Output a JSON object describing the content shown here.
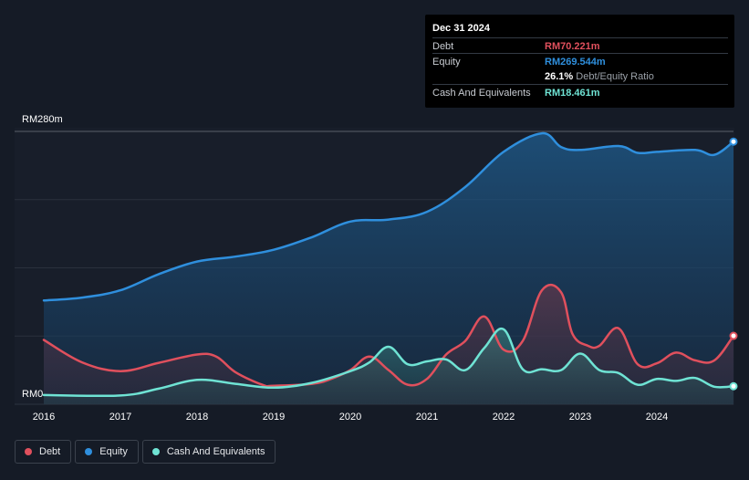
{
  "tooltip": {
    "date": "Dec 31 2024",
    "debt_label": "Debt",
    "debt_value": "RM70.221m",
    "equity_label": "Equity",
    "equity_value": "RM269.544m",
    "ratio_value": "26.1%",
    "ratio_label": "Debt/Equity Ratio",
    "cash_label": "Cash And Equivalents",
    "cash_value": "RM18.461m"
  },
  "legend": [
    {
      "label": "Debt",
      "color": "#e0505d"
    },
    {
      "label": "Equity",
      "color": "#2f8fdd"
    },
    {
      "label": "Cash And Equivalents",
      "color": "#6fe3d4"
    }
  ],
  "colors": {
    "debt": "#e0505d",
    "equity": "#2f8fdd",
    "cash": "#6fe3d4",
    "background": "#151b26",
    "plot_background": "#181e2a"
  },
  "chart_data": {
    "type": "area",
    "title": "",
    "xlabel": "",
    "ylabel": "",
    "ylim": [
      0,
      280
    ],
    "xlim": [
      2016,
      2025
    ],
    "y_ticks": [
      {
        "value": 280,
        "label": "RM280m"
      },
      {
        "value": 0,
        "label": "RM0"
      }
    ],
    "x_ticks": [
      {
        "value": 2016,
        "label": "2016"
      },
      {
        "value": 2017,
        "label": "2017"
      },
      {
        "value": 2018,
        "label": "2018"
      },
      {
        "value": 2019,
        "label": "2019"
      },
      {
        "value": 2020,
        "label": "2020"
      },
      {
        "value": 2021,
        "label": "2021"
      },
      {
        "value": 2022,
        "label": "2022"
      },
      {
        "value": 2023,
        "label": "2023"
      },
      {
        "value": 2024,
        "label": "2024"
      }
    ],
    "series": [
      {
        "name": "Equity",
        "points": [
          [
            2016.0,
            106.5
          ],
          [
            2016.5,
            109.5
          ],
          [
            2017.0,
            117
          ],
          [
            2017.5,
            133.5
          ],
          [
            2018.0,
            146.5
          ],
          [
            2018.5,
            151.5
          ],
          [
            2019.0,
            158.5
          ],
          [
            2019.5,
            171.5
          ],
          [
            2020.0,
            187.5
          ],
          [
            2020.5,
            189.5
          ],
          [
            2021.0,
            197.5
          ],
          [
            2021.5,
            223
          ],
          [
            2022.0,
            259
          ],
          [
            2022.5,
            278
          ],
          [
            2022.75,
            264
          ],
          [
            2023.0,
            261
          ],
          [
            2023.5,
            265
          ],
          [
            2023.75,
            258
          ],
          [
            2024.0,
            259
          ],
          [
            2024.5,
            261
          ],
          [
            2024.75,
            256
          ],
          [
            2025.0,
            269.5
          ]
        ]
      },
      {
        "name": "Debt",
        "points": [
          [
            2016.0,
            66
          ],
          [
            2016.5,
            43
          ],
          [
            2017.0,
            34
          ],
          [
            2017.5,
            42.5
          ],
          [
            2018.0,
            51
          ],
          [
            2018.25,
            49
          ],
          [
            2018.5,
            33
          ],
          [
            2018.85,
            20
          ],
          [
            2019.0,
            19
          ],
          [
            2019.5,
            21
          ],
          [
            2019.75,
            26
          ],
          [
            2020.0,
            35
          ],
          [
            2020.25,
            49
          ],
          [
            2020.5,
            35
          ],
          [
            2020.75,
            20
          ],
          [
            2021.0,
            26
          ],
          [
            2021.25,
            51
          ],
          [
            2021.5,
            65
          ],
          [
            2021.75,
            90
          ],
          [
            2022.0,
            56
          ],
          [
            2022.25,
            65
          ],
          [
            2022.5,
            117
          ],
          [
            2022.75,
            115
          ],
          [
            2022.9,
            72
          ],
          [
            2023.1,
            60
          ],
          [
            2023.25,
            60
          ],
          [
            2023.5,
            78
          ],
          [
            2023.75,
            41
          ],
          [
            2024.0,
            42
          ],
          [
            2024.25,
            53
          ],
          [
            2024.5,
            45
          ],
          [
            2024.75,
            45
          ],
          [
            2025.0,
            70.2
          ]
        ]
      },
      {
        "name": "Cash And Equivalents",
        "points": [
          [
            2016.0,
            9.5
          ],
          [
            2017.0,
            9
          ],
          [
            2017.5,
            16
          ],
          [
            2018.0,
            25
          ],
          [
            2018.5,
            21
          ],
          [
            2019.0,
            17
          ],
          [
            2019.5,
            22
          ],
          [
            2020.0,
            34
          ],
          [
            2020.25,
            43
          ],
          [
            2020.5,
            59
          ],
          [
            2020.75,
            41
          ],
          [
            2021.0,
            44
          ],
          [
            2021.25,
            46
          ],
          [
            2021.5,
            35
          ],
          [
            2021.75,
            58
          ],
          [
            2022.0,
            77
          ],
          [
            2022.25,
            36
          ],
          [
            2022.5,
            36
          ],
          [
            2022.75,
            35
          ],
          [
            2023.0,
            52
          ],
          [
            2023.25,
            35
          ],
          [
            2023.5,
            32
          ],
          [
            2023.75,
            20
          ],
          [
            2024.0,
            26
          ],
          [
            2024.25,
            24
          ],
          [
            2024.5,
            27
          ],
          [
            2024.75,
            18
          ],
          [
            2025.0,
            18.5
          ]
        ]
      }
    ]
  }
}
